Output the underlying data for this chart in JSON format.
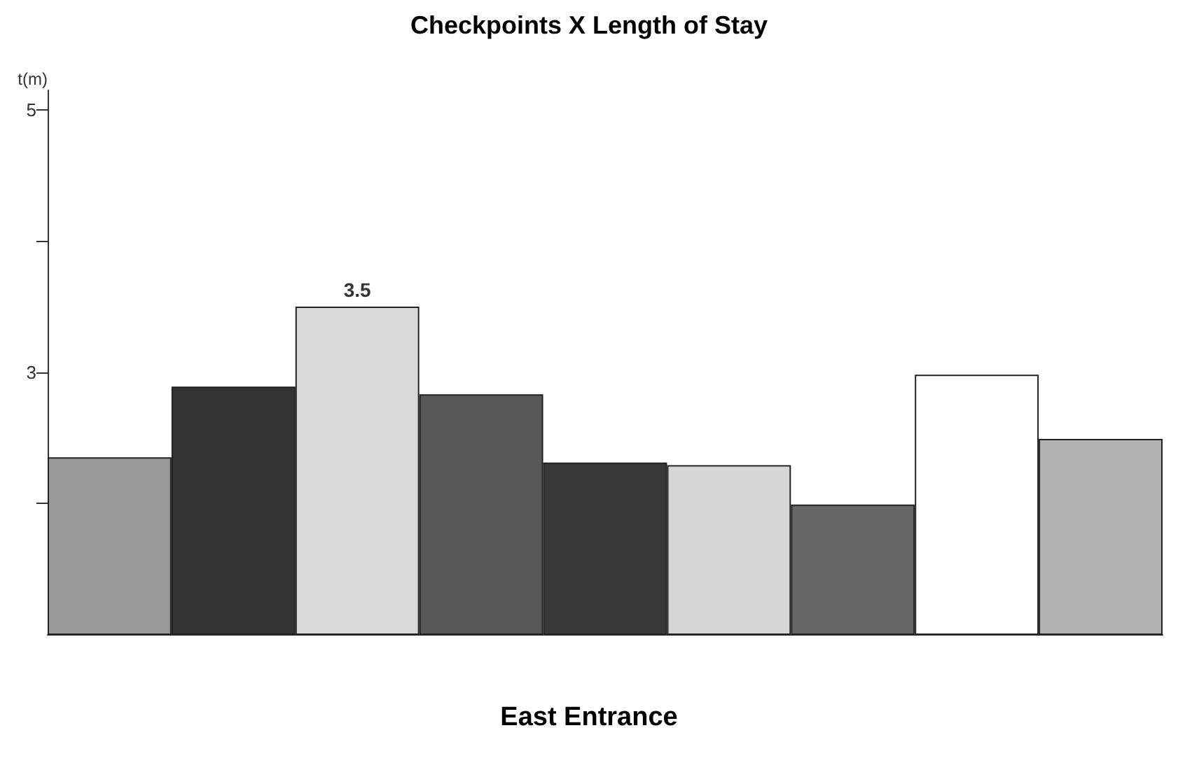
{
  "chart_data": {
    "type": "bar",
    "title": "Checkpoints X Length of Stay",
    "xlabel": "East Entrance",
    "ylabel": "t(m)",
    "categories": [
      null,
      null,
      null,
      null,
      null,
      null,
      null,
      null,
      null
    ],
    "values": [
      2.35,
      2.89,
      3.5,
      2.83,
      2.31,
      2.29,
      1.99,
      2.98,
      2.49
    ],
    "colors": [
      "#999999",
      "#333333",
      "#d9d9d9",
      "#585858",
      "#383838",
      "#d6d6d6",
      "#666666",
      "#ffffff",
      "#b2b2b2"
    ],
    "value_labels": [
      null,
      null,
      "3.5",
      null,
      null,
      null,
      null,
      null,
      null
    ],
    "ylim": [
      1,
      5.15
    ],
    "yticks": [
      {
        "value": 2,
        "label": null
      },
      3,
      {
        "value": 4,
        "label": null
      },
      5
    ],
    "grid": false
  }
}
